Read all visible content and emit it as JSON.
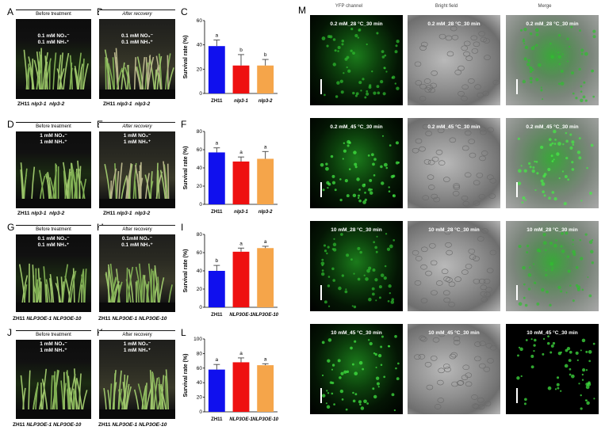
{
  "panels": {
    "A": {
      "label": "A",
      "caption": "Before treatment",
      "cond1": "0.1 mM NO₃⁻",
      "cond2": "0.1 mM NH₄⁺"
    },
    "B": {
      "label": "B",
      "caption": "After recovery",
      "cond1": "0.1 mM NO₃⁻",
      "cond2": "0.1 mM NH₄⁺"
    },
    "D": {
      "label": "D",
      "caption": "Before treatment",
      "cond1": "1 mM NO₃⁻",
      "cond2": "1 mM NH₄⁺"
    },
    "E": {
      "label": "E",
      "caption": "After recovery",
      "cond1": "1 mM NO₃⁻",
      "cond2": "1 mM NH₄⁺"
    },
    "G": {
      "label": "G",
      "caption": "Before treatment",
      "cond1": "0.1 mM NO₃⁻",
      "cond2": "0.1 mM NH₄⁺"
    },
    "H": {
      "label": "H",
      "caption": "After recovery",
      "cond1": "0.1mM NO₃⁻",
      "cond2": "0.1 mM NH₄⁺"
    },
    "J": {
      "label": "J",
      "caption": "Before treatment",
      "cond1": "1 mM NO₃⁻",
      "cond2": "1 mM NH₄⁺"
    },
    "K": {
      "label": "K",
      "caption": "After recovery",
      "cond1": "1 mM NO₃⁻",
      "cond2": "1 mM NH₄⁺"
    }
  },
  "genotype_rows": {
    "row1": {
      "wt": "ZH11",
      "g1": "nlp3-1",
      "g2": "nlp3-2"
    },
    "row2": {
      "wt": "ZH11",
      "g1": "nlp3-1",
      "g2": "nlp3-2"
    },
    "row3": {
      "wt": "ZH11",
      "g1": "NLP3OE-1",
      "g2": "NLP3OE-10"
    },
    "row4": {
      "wt": "ZH11",
      "g1": "NLP3OE-1",
      "g2": "NLP3OE-10"
    }
  },
  "colors": {
    "zh11": "#1010ee",
    "g1": "#ee1010",
    "g2": "#f5a54a"
  },
  "chart_data": [
    {
      "panel": "C",
      "type": "bar",
      "categories": [
        "ZH11",
        "nlp3-1",
        "nlp3-2"
      ],
      "values": [
        39,
        23,
        23
      ],
      "errors": [
        5,
        9,
        5
      ],
      "letters": [
        "a",
        "b",
        "b"
      ],
      "ylabel": "Survival rate (%)",
      "ylim": [
        0,
        60
      ],
      "yticks": [
        0,
        20,
        40,
        60
      ]
    },
    {
      "panel": "F",
      "type": "bar",
      "categories": [
        "ZH11",
        "nlp3-1",
        "nlp3-2"
      ],
      "values": [
        57,
        47,
        50
      ],
      "errors": [
        5,
        5,
        8
      ],
      "letters": [
        "a",
        "a",
        "a"
      ],
      "ylabel": "Survival rate (%)",
      "ylim": [
        0,
        80
      ],
      "yticks": [
        0,
        20,
        40,
        60,
        80
      ]
    },
    {
      "panel": "I",
      "type": "bar",
      "categories": [
        "ZH11",
        "NLP3OE-1",
        "NLP3OE-10"
      ],
      "values": [
        40,
        61,
        65
      ],
      "errors": [
        6,
        4,
        2
      ],
      "letters": [
        "b",
        "a",
        "a"
      ],
      "ylabel": "Survival rate (%)",
      "ylim": [
        0,
        80
      ],
      "yticks": [
        0,
        20,
        40,
        60,
        80
      ]
    },
    {
      "panel": "L",
      "type": "bar",
      "categories": [
        "ZH11",
        "NLP3OE-1",
        "NLP3OE-10"
      ],
      "values": [
        58,
        68,
        64
      ],
      "errors": [
        7,
        6,
        2
      ],
      "letters": [
        "a",
        "a",
        "a"
      ],
      "ylabel": "Survival rate (%)",
      "ylim": [
        0,
        100
      ],
      "yticks": [
        0,
        20,
        40,
        60,
        80,
        100
      ]
    }
  ],
  "microscopy": {
    "label": "M",
    "col_headers": [
      "YFP channel",
      "Bright field",
      "Merge"
    ],
    "rows": [
      "0.2 mM_28 °C_30 min",
      "0.2 mM_45 °C_30 min",
      "10 mM_28 °C_30 min",
      "10 mM_45 °C_30 min"
    ]
  }
}
